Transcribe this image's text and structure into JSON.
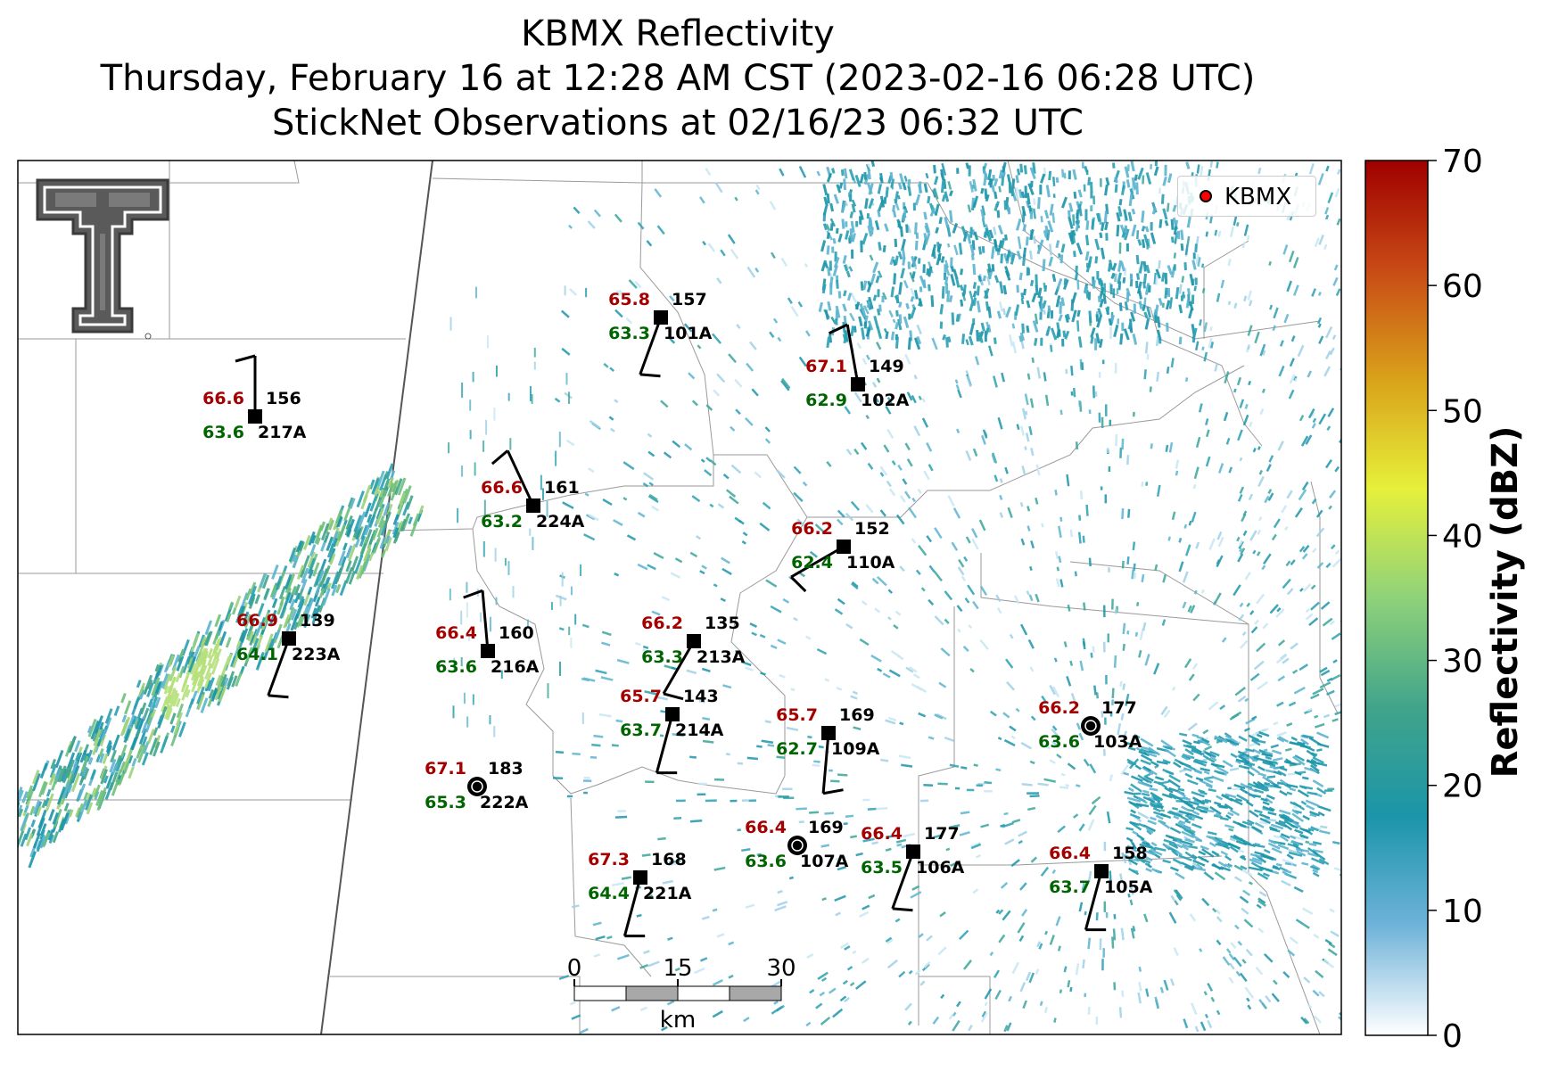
{
  "title": {
    "line1": "KBMX Reflectivity",
    "line2": "Thursday, February 16 at 12:28 AM CST (2023-02-16 06:28 UTC)",
    "line3": "StickNet Observations at 02/16/23 06:32 UTC"
  },
  "legend": {
    "label": "KBMX",
    "marker_color": "#ff0000"
  },
  "colorbar": {
    "label": "Reflectivity (dBZ)",
    "ticks": [
      "0",
      "10",
      "20",
      "30",
      "40",
      "50",
      "60",
      "70"
    ],
    "range": [
      0,
      70
    ],
    "colors": [
      "#ffffff",
      "#6fb3d9",
      "#1b95a9",
      "#41a48a",
      "#8fd27a",
      "#e6f03a",
      "#d9a21a",
      "#c84a16",
      "#a00000"
    ]
  },
  "scale_bar": {
    "ticks": [
      "0",
      "15",
      "30"
    ],
    "unit": "km"
  },
  "station_colors": {
    "temperature": "#a50000",
    "dewpoint": "#006400",
    "label": "#000000"
  },
  "stations": [
    {
      "id": "101A",
      "temp": "65.8",
      "dew": "63.3",
      "value": "157",
      "icon": "square",
      "wind_dir": 340,
      "barbs": 1
    },
    {
      "id": "102A",
      "temp": "67.1",
      "dew": "62.9",
      "value": "149",
      "icon": "square",
      "wind_dir": 190,
      "barbs": 1
    },
    {
      "id": "217A",
      "temp": "66.6",
      "dew": "63.6",
      "value": "156",
      "icon": "square",
      "wind_dir": 180,
      "barbs": 1
    },
    {
      "id": "224A",
      "temp": "66.6",
      "dew": "63.2",
      "value": "161",
      "icon": "square",
      "wind_dir": 205,
      "barbs": 1
    },
    {
      "id": "110A",
      "temp": "66.2",
      "dew": "62.4",
      "value": "152",
      "icon": "square",
      "wind_dir": 300,
      "barbs": 1
    },
    {
      "id": "223A",
      "temp": "66.9",
      "dew": "64.1",
      "value": "139",
      "icon": "square",
      "wind_dir": 340,
      "barbs": 1
    },
    {
      "id": "216A",
      "temp": "66.4",
      "dew": "63.6",
      "value": "160",
      "icon": "square",
      "wind_dir": 185,
      "barbs": 1
    },
    {
      "id": "213A",
      "temp": "66.2",
      "dew": "63.3",
      "value": "135",
      "icon": "square",
      "wind_dir": 330,
      "barbs": 1
    },
    {
      "id": "214A",
      "temp": "65.7",
      "dew": "63.7",
      "value": "143",
      "icon": "square",
      "wind_dir": 345,
      "barbs": 1
    },
    {
      "id": "109A",
      "temp": "65.7",
      "dew": "62.7",
      "value": "169",
      "icon": "square",
      "wind_dir": 355,
      "barbs": 1
    },
    {
      "id": "103A",
      "temp": "66.2",
      "dew": "63.6",
      "value": "177",
      "icon": "calm",
      "wind_dir": 0,
      "barbs": 0
    },
    {
      "id": "222A",
      "temp": "67.1",
      "dew": "65.3",
      "value": "183",
      "icon": "calm",
      "wind_dir": 0,
      "barbs": 0
    },
    {
      "id": "107A",
      "temp": "66.4",
      "dew": "63.6",
      "value": "169",
      "icon": "calm",
      "wind_dir": 0,
      "barbs": 0
    },
    {
      "id": "106A",
      "temp": "66.4",
      "dew": "63.5",
      "value": "177",
      "icon": "square",
      "wind_dir": 340,
      "barbs": 1
    },
    {
      "id": "221A",
      "temp": "67.3",
      "dew": "64.4",
      "value": "168",
      "icon": "square",
      "wind_dir": 345,
      "barbs": 1
    },
    {
      "id": "105A",
      "temp": "66.4",
      "dew": "63.7",
      "value": "158",
      "icon": "square",
      "wind_dir": 345,
      "barbs": 1
    }
  ]
}
